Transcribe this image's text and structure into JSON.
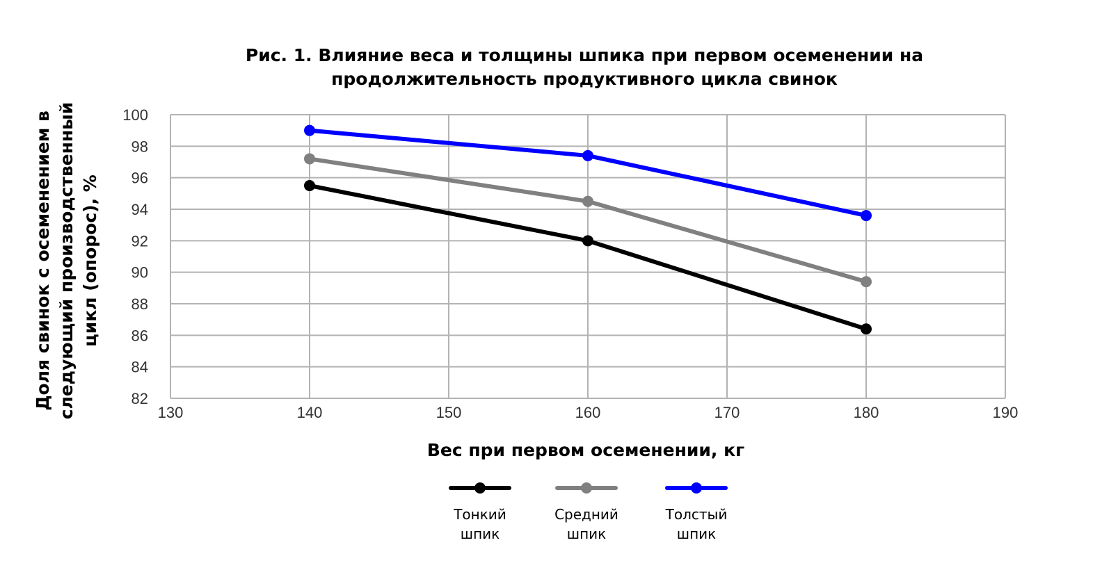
{
  "chart_data": {
    "type": "line",
    "title": "Рис. 1. Влияние веса и толщины шпика при первом осеменении на продолжительность продуктивного цикла свинок",
    "title_lines": [
      "Рис. 1. Влияние веса и толщины шпика при первом осеменении на",
      "продолжительность продуктивного цикла свинок"
    ],
    "xlabel": "Вес при первом осеменении, кг",
    "ylabel": "Доля свинок с осеменением в следующий производственный цикл (опорос), %",
    "ylabel_lines": [
      "Доля свинок с осеменением в",
      "следующий производственный",
      "цикл (опорос), %"
    ],
    "xlim": [
      130,
      190
    ],
    "ylim": [
      82,
      100
    ],
    "xticks": [
      130,
      140,
      150,
      160,
      170,
      180,
      190
    ],
    "yticks": [
      82,
      84,
      86,
      88,
      90,
      92,
      94,
      96,
      98,
      100
    ],
    "grid": true,
    "legend_position": "bottom",
    "x": [
      140,
      160,
      180
    ],
    "series": [
      {
        "name": "Тонкий шпик",
        "name_lines": [
          "Тонкий",
          "шпик"
        ],
        "color": "#000000",
        "values": [
          95.5,
          92.0,
          86.4
        ]
      },
      {
        "name": "Средний шпик",
        "name_lines": [
          "Средний",
          "шпик"
        ],
        "color": "#808080",
        "values": [
          97.2,
          94.5,
          89.4
        ]
      },
      {
        "name": "Толстый шпик",
        "name_lines": [
          "Толстый",
          "шпик"
        ],
        "color": "#0000ff",
        "values": [
          99.0,
          97.4,
          93.6
        ]
      }
    ]
  }
}
